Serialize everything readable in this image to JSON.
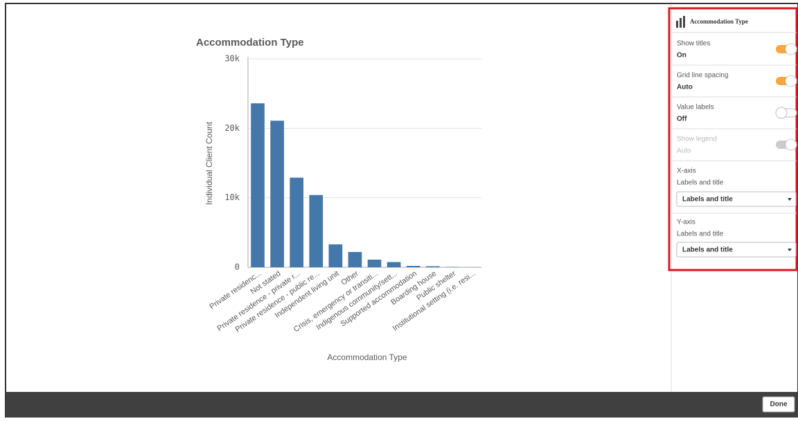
{
  "chart_data": {
    "type": "bar",
    "title": "Accommodation Type",
    "x_label": "Accommodation Type",
    "y_label": "Individual Client Count",
    "categories": [
      "Private residenc...",
      "Not stated",
      "Private residence - private r...",
      "Private residence - public re...",
      "Independent living unit",
      "Other",
      "Crisis, emergency or transiti...",
      "Indigenous community/sett...",
      "Supported accommodation",
      "Boarding house",
      "Public shelter",
      "Institutional setting (i.e. resi..."
    ],
    "values": [
      23600,
      21100,
      12900,
      10400,
      3300,
      2200,
      1100,
      750,
      200,
      150,
      50,
      30
    ],
    "color": "#4477aa",
    "ylim": [
      0,
      30000
    ],
    "yticks": [
      0,
      {
        "value": 10000,
        "label": "10k"
      },
      {
        "value": 20000,
        "label": "20k"
      },
      {
        "value": 30000,
        "label": "30k"
      }
    ],
    "grid": true
  },
  "panel": {
    "header": "Accommodation Type",
    "items": [
      {
        "label": "Show titles",
        "value": "On"
      },
      {
        "label": "Grid line spacing",
        "value": "Auto"
      },
      {
        "label": "Value labels",
        "value": "Off"
      },
      {
        "label": "Show legend",
        "value": "Auto"
      }
    ],
    "x_axis": {
      "title": "X-axis",
      "label": "Labels and title",
      "selected": "Labels and title"
    },
    "y_axis": {
      "title": "Y-axis",
      "label": "Labels and title",
      "selected": "Labels and title"
    },
    "done": "Done"
  }
}
